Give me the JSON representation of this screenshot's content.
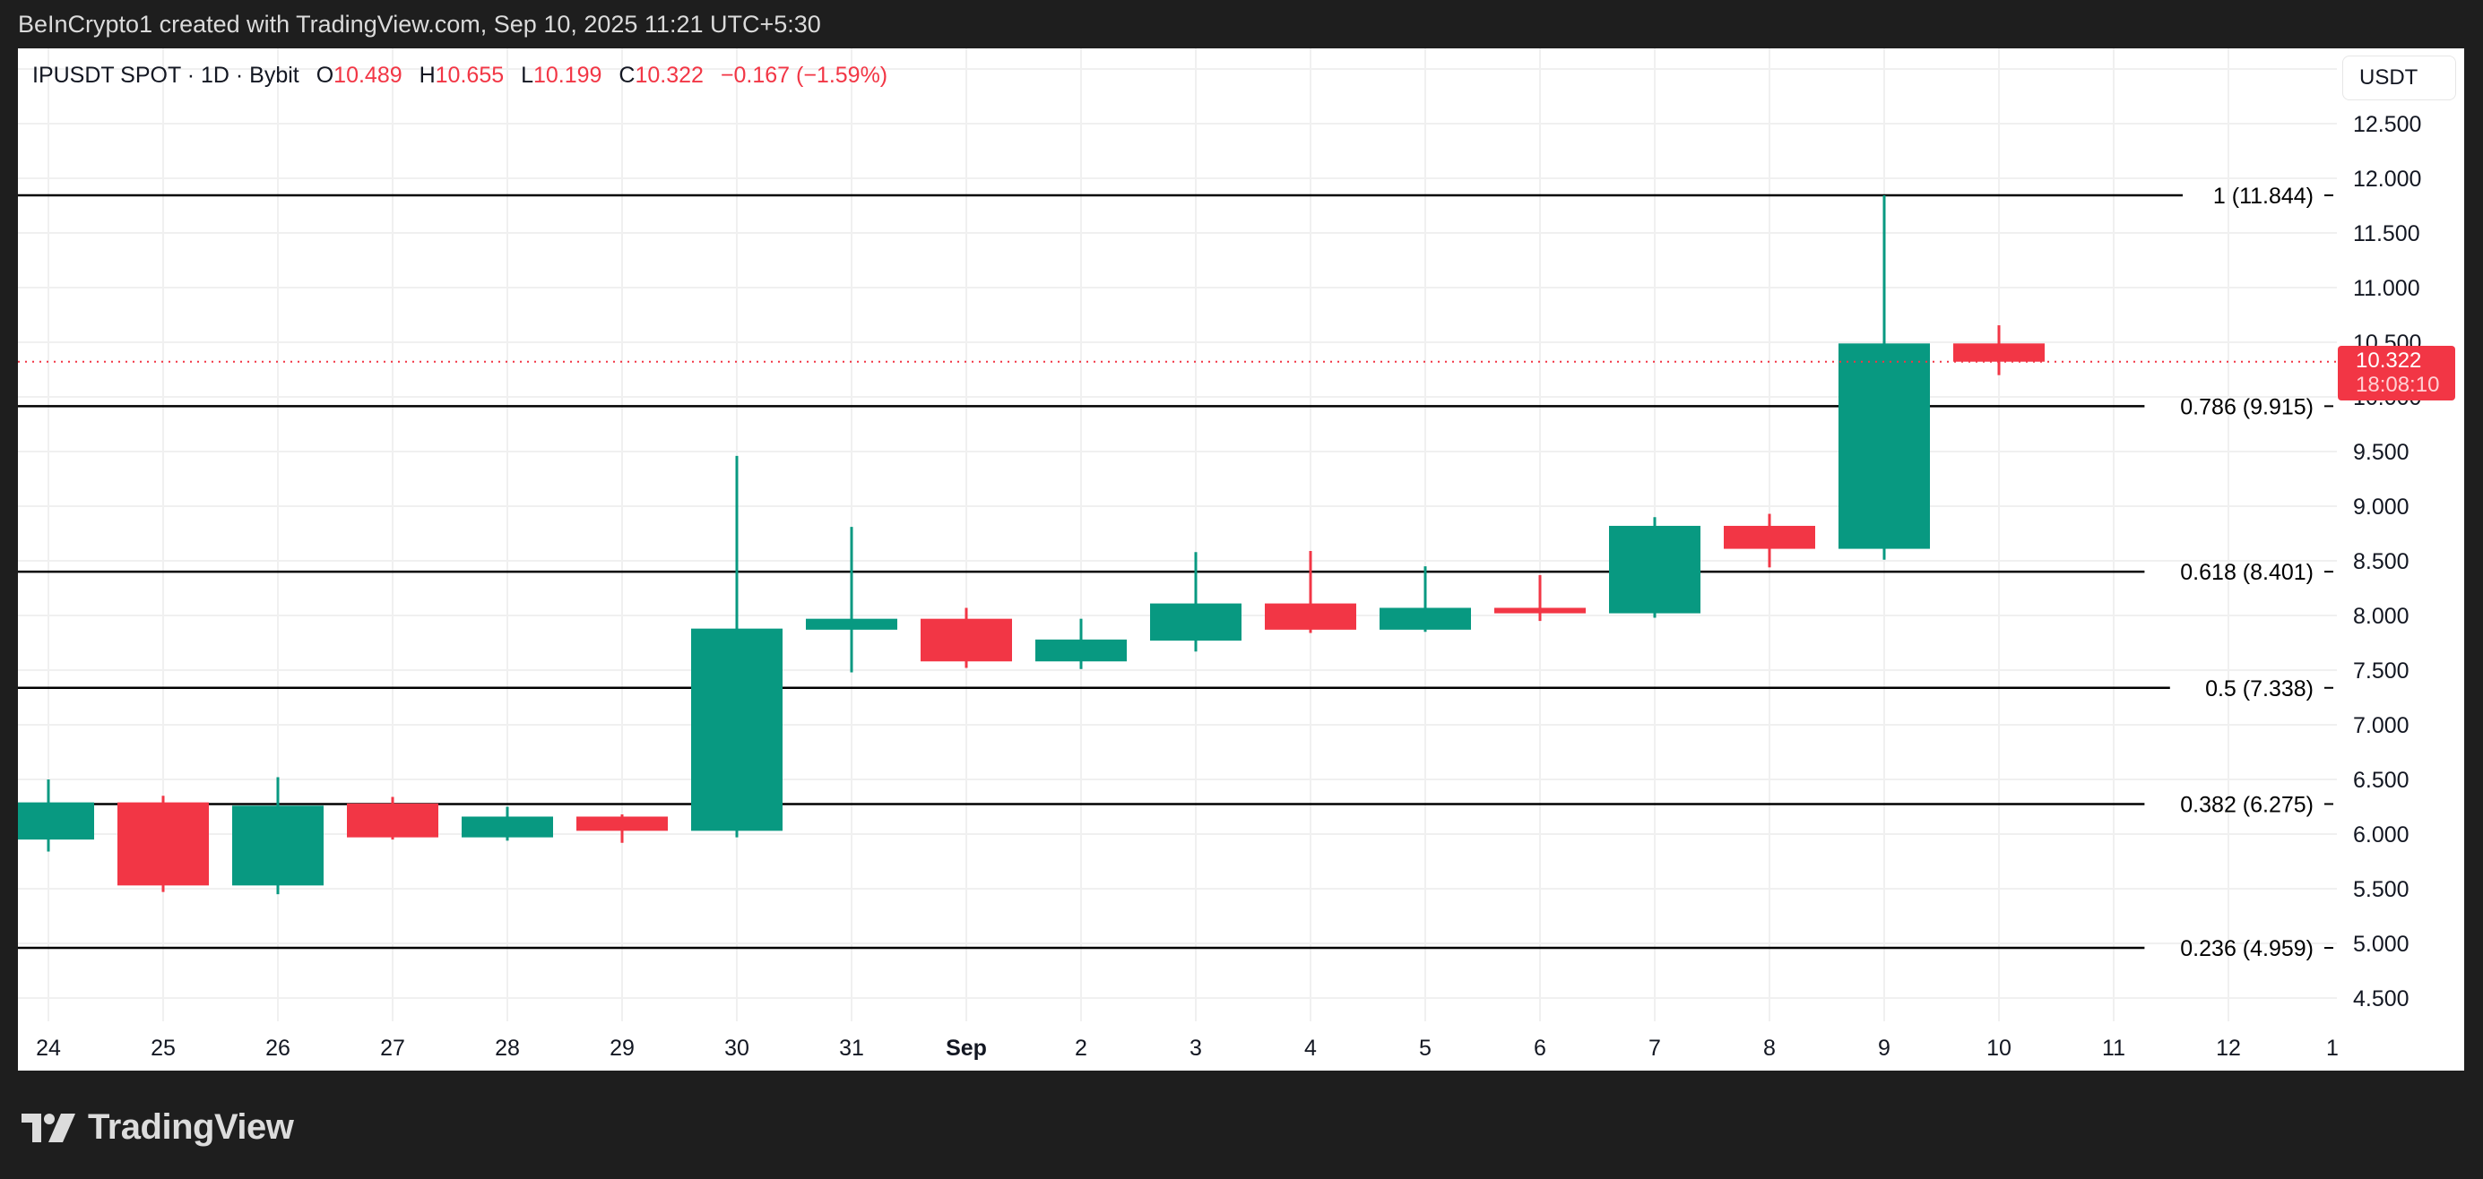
{
  "header": {
    "credit": "BeInCrypto1 created with TradingView.com, Sep 10, 2025 11:21 UTC+5:30"
  },
  "legend": {
    "symbol": "IPUSDT SPOT · 1D · Bybit",
    "o_label": "O",
    "o_value": "10.489",
    "h_label": "H",
    "h_value": "10.655",
    "l_label": "L",
    "l_value": "10.199",
    "c_label": "C",
    "c_value": "10.322",
    "change": "−0.167 (−1.59%)"
  },
  "currency_button": {
    "label": "USDT"
  },
  "price_tag": {
    "price": "10.322",
    "countdown": "18:08:10"
  },
  "logo": {
    "text": "TradingView"
  },
  "colors": {
    "up": "#089981",
    "down": "#f23645",
    "fib_line": "#000000",
    "grid": "#f0f0f0",
    "background": "#1e1e1e"
  },
  "chart_data": {
    "type": "candlestick",
    "title": "IPUSDT SPOT · 1D · Bybit",
    "xlabel": "",
    "ylabel": "USDT",
    "ylim": [
      4.2,
      13.1
    ],
    "grid": true,
    "y_ticks": [
      "4.500",
      "5.000",
      "5.500",
      "6.000",
      "6.500",
      "7.000",
      "7.500",
      "8.000",
      "8.500",
      "9.000",
      "9.500",
      "10.000",
      "10.500",
      "11.000",
      "11.500",
      "12.000",
      "12.500"
    ],
    "x_ticks": [
      "24",
      "25",
      "26",
      "27",
      "28",
      "29",
      "30",
      "31",
      "Sep",
      "2",
      "3",
      "4",
      "5",
      "6",
      "7",
      "8",
      "9",
      "10",
      "11",
      "12",
      "1"
    ],
    "candles": [
      {
        "date": "Aug 24",
        "open": 5.95,
        "high": 6.5,
        "low": 5.84,
        "close": 6.29
      },
      {
        "date": "Aug 25",
        "open": 6.29,
        "high": 6.35,
        "low": 5.47,
        "close": 5.53
      },
      {
        "date": "Aug 26",
        "open": 5.53,
        "high": 6.52,
        "low": 5.45,
        "close": 6.26
      },
      {
        "date": "Aug 27",
        "open": 6.28,
        "high": 6.34,
        "low": 5.95,
        "close": 5.97
      },
      {
        "date": "Aug 28",
        "open": 5.97,
        "high": 6.25,
        "low": 5.94,
        "close": 6.16
      },
      {
        "date": "Aug 29",
        "open": 6.16,
        "high": 6.18,
        "low": 5.92,
        "close": 6.03
      },
      {
        "date": "Aug 30",
        "open": 6.03,
        "high": 9.46,
        "low": 5.97,
        "close": 7.88
      },
      {
        "date": "Aug 31",
        "open": 7.87,
        "high": 8.81,
        "low": 7.48,
        "close": 7.97
      },
      {
        "date": "Sep 1",
        "open": 7.97,
        "high": 8.07,
        "low": 7.52,
        "close": 7.58
      },
      {
        "date": "Sep 2",
        "open": 7.58,
        "high": 7.97,
        "low": 7.51,
        "close": 7.78
      },
      {
        "date": "Sep 3",
        "open": 7.77,
        "high": 8.58,
        "low": 7.67,
        "close": 8.11
      },
      {
        "date": "Sep 4",
        "open": 8.11,
        "high": 8.59,
        "low": 7.84,
        "close": 7.87
      },
      {
        "date": "Sep 5",
        "open": 7.87,
        "high": 8.45,
        "low": 7.85,
        "close": 8.07
      },
      {
        "date": "Sep 6",
        "open": 8.07,
        "high": 8.37,
        "low": 7.95,
        "close": 8.02
      },
      {
        "date": "Sep 7",
        "open": 8.02,
        "high": 8.9,
        "low": 7.98,
        "close": 8.82
      },
      {
        "date": "Sep 8",
        "open": 8.82,
        "high": 8.93,
        "low": 8.44,
        "close": 8.61
      },
      {
        "date": "Sep 9",
        "open": 8.61,
        "high": 11.844,
        "low": 8.51,
        "close": 10.489
      },
      {
        "date": "Sep 10",
        "open": 10.489,
        "high": 10.655,
        "low": 10.199,
        "close": 10.322
      }
    ],
    "fib_levels": [
      {
        "ratio": "1",
        "price": 11.844,
        "label": "1 (11.844)"
      },
      {
        "ratio": "0.786",
        "price": 9.915,
        "label": "0.786 (9.915)"
      },
      {
        "ratio": "0.618",
        "price": 8.401,
        "label": "0.618 (8.401)"
      },
      {
        "ratio": "0.5",
        "price": 7.338,
        "label": "0.5 (7.338)"
      },
      {
        "ratio": "0.382",
        "price": 6.275,
        "label": "0.382 (6.275)"
      },
      {
        "ratio": "0.236",
        "price": 4.959,
        "label": "0.236 (4.959)"
      }
    ],
    "last_price": 10.322,
    "annotations": [
      "Current price 10.322 with bar countdown 18:08:10"
    ]
  }
}
